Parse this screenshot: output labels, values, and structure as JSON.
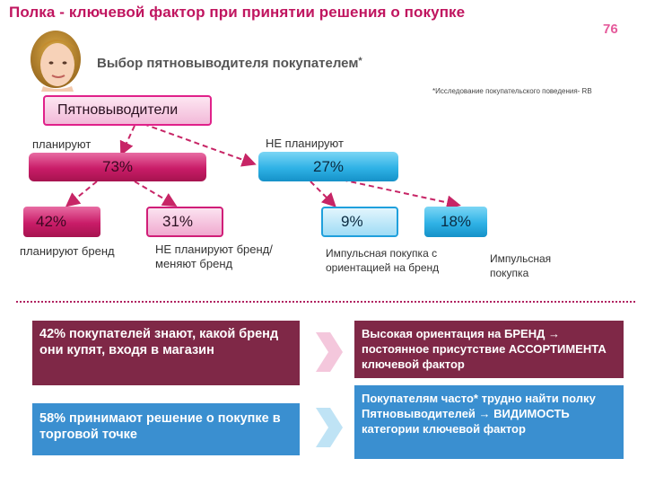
{
  "title": "Полка  - ключевой фактор при принятии решения о покупке",
  "page_number": "76",
  "subtitle": "Выбор пятновыводителя покупателем",
  "subtitle_mark": "*",
  "footnote": "*Исследование покупательского поведения- RB",
  "tree": {
    "root": "Пятновыводители",
    "planned": {
      "label": "планируют",
      "value": "73%"
    },
    "unplanned": {
      "label": "НЕ планируют",
      "value": "27%"
    },
    "leaves": [
      {
        "value": "42%",
        "label": "планируют бренд"
      },
      {
        "value": "31%",
        "label": "НЕ планируют бренд/ меняют бренд"
      },
      {
        "value": "9%",
        "label": "Импульсная покупка с ориентацией на бренд"
      },
      {
        "value": "18%",
        "label": "Импульсная покупка"
      }
    ]
  },
  "insights": [
    {
      "left": "42% покупателей знают, какой бренд они купят, входя в магазин",
      "right": "Высокая ориентация на БРЕНД → постоянное присутствие АССОРТИМЕНТА ключевой фактор"
    },
    {
      "left": "58%  принимают решение о покупке в торговой точке",
      "right": "Покупателям часто* трудно найти полку Пятновыводителей → ВИДИМОСТЬ категории ключевой фактор"
    }
  ],
  "colors": {
    "accent": "#c0155f",
    "pink": "#d1246f",
    "blue": "#2fb2e6",
    "dark_panel": "#7f2847",
    "blue_panel": "#3a8fd0"
  }
}
